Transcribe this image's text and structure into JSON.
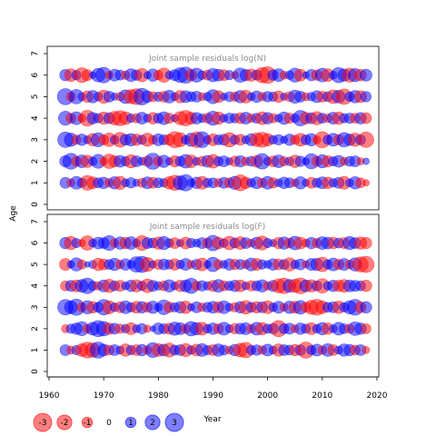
{
  "chart_data": {
    "type": "scatter",
    "xlabel": "Year",
    "ylabel": "Age",
    "xlim": [
      1960,
      2020
    ],
    "ylim": [
      0,
      7
    ],
    "x_ticks": [
      1960,
      1970,
      1980,
      1990,
      2000,
      2010,
      2020
    ],
    "y_ticks": [
      0,
      1,
      2,
      3,
      4,
      5,
      6,
      7
    ],
    "years": [
      1963,
      2018
    ],
    "ages": [
      1,
      2,
      3,
      4,
      5,
      6
    ],
    "colors": {
      "negative": "#ff0000",
      "positive": "#0000ff",
      "alpha": 0.5
    },
    "panels": [
      {
        "title": "Joint sample residuals log(N)",
        "residuals": {
          "6": [
            1.2,
            -1.5,
            0.8,
            -2,
            -1.1,
            0.4,
            1.7,
            2.2,
            -0.6,
            1.3,
            0.9,
            -0.7,
            1.5,
            1,
            -1.6,
            0.5,
            1.4,
            -0.8,
            -1.9,
            0.6,
            1.1,
            2,
            2.4,
            -1.2,
            1.8,
            0.7,
            -0.9,
            1.6,
            1.3,
            -1.1,
            0.8,
            -0.5,
            1.9,
            1.2,
            -1.4,
            0.9,
            -2.1,
            -2.6,
            1,
            1.5,
            -0.6,
            0.7,
            1.8,
            -1.3,
            0.4,
            1.2,
            -1,
            1.7,
            -1.5,
            0.6,
            2.1,
            1.4,
            -1.8,
            1.6,
            -1.2,
            1.3
          ],
          "5": [
            2.4,
            -0.8,
            1.9,
            0.6,
            -1.2,
            1.4,
            0.7,
            -1.6,
            1.1,
            0.5,
            -0.7,
            1.7,
            -1.8,
            -2.3,
            2.5,
            1.2,
            -0.9,
            0.8,
            -1.1,
            1.5,
            0.6,
            -1.4,
            1.3,
            0.9,
            1.1,
            -0.6,
            0.7,
            1.8,
            -1.3,
            0.5,
            0.9,
            -0.8,
            1.4,
            -1.5,
            0.6,
            1.2,
            -0.7,
            1,
            0.8,
            -1.2,
            0.5,
            -0.9,
            1.6,
            1.1,
            -0.6,
            0.7,
            1.3,
            -1.1,
            0.9,
            -1.7,
            1.5,
            -2.2,
            0.8,
            1.4,
            -1.3,
            1
          ],
          "4": [
            1.8,
            -0.9,
            1.5,
            -0.6,
            -2.3,
            1.2,
            0.8,
            -1.4,
            1.1,
            -1.7,
            -2.1,
            -1.5,
            0.7,
            -0.8,
            1.3,
            0.6,
            -1.2,
            0.9,
            1.5,
            -1,
            0.5,
            -1.6,
            -2.2,
            -1.3,
            1.2,
            0.7,
            -0.9,
            1.8,
            -1.4,
            0.6,
            1,
            0.8,
            -1.1,
            1.3,
            -0.7,
            0.9,
            -1.5,
            1.2,
            -0.8,
            0.6,
            1.4,
            -1,
            0.7,
            2.2,
            -1.3,
            1.1,
            -1.6,
            0.9,
            -0.7,
            1.3,
            -1.4,
            0.8,
            1,
            -0.9,
            1.2,
            -1.1
          ],
          "3": [
            2.2,
            1.6,
            -0.8,
            1.2,
            0.6,
            -1.4,
            1.8,
            -0.9,
            -1.7,
            0.7,
            -2,
            1.1,
            1.4,
            -1.2,
            0.8,
            -1.6,
            -0.7,
            1.3,
            0.9,
            -1.1,
            -2.4,
            -1.8,
            0.7,
            1.6,
            -2.2,
            2.3,
            0.6,
            -1.3,
            0.9,
            1.1,
            -1.9,
            0.8,
            -1.1,
            0.6,
            1.3,
            -1.7,
            -2.1,
            -1.4,
            0.7,
            1,
            0.5,
            1.2,
            -0.8,
            -1.5,
            0.9,
            1.4,
            -0.6,
            -2.4,
            0.8,
            1.5,
            -1,
            1.9,
            1.2,
            -1.6,
            0.9,
            -2.2
          ],
          "2": [
            1.2,
            2.3,
            -0.9,
            1.5,
            -1.4,
            0.7,
            1.8,
            -0.6,
            -1.9,
            -1.2,
            1.3,
            0.8,
            -1.6,
            1.1,
            0.6,
            -1,
            2.4,
            -0.8,
            1.4,
            0.5,
            -1.2,
            0.9,
            1.7,
            -1.5,
            0.6,
            -0.9,
            1.3,
            -1.7,
            0.8,
            1.1,
            0.5,
            -1,
            1.2,
            -0.7,
            0.9,
            -1.3,
            2.2,
            0.6,
            -1.1,
            1.5,
            -0.8,
            0.7,
            -1.4,
            1,
            0.5,
            2.1,
            -0.9,
            1.6,
            -1.2,
            0.8,
            1.3,
            -0.6,
            0.9,
            1.1,
            -0.5,
            0.4
          ],
          "1": [
            1.1,
            -0.6,
            1.5,
            0.8,
            -2,
            -1.3,
            0.9,
            1.2,
            -0.7,
            1.4,
            -1.6,
            0.6,
            1,
            0.5,
            -0.8,
            1.3,
            -1.1,
            0.9,
            0.7,
            -1.4,
            -2.1,
            1.8,
            2.4,
            0.6,
            1.2,
            -1.5,
            0.8,
            0.9,
            -0.7,
            1.1,
            -0.9,
            1.6,
            -2.3,
            -1.2,
            0.7,
            1.3,
            -0.8,
            1.5,
            -1,
            0.6,
            1.2,
            0.9,
            -0.6,
            1.4,
            0.5,
            -1.1,
            0.8,
            1.3,
            -1.2,
            0.7,
            1.1,
            -1.5,
            0.6,
            1.4,
            -0.9,
            -0.4
          ]
        }
      },
      {
        "title": "Joint sample residuals log(F)",
        "residuals": {
          "6": [
            1.2,
            -1.6,
            0.8,
            -0.5,
            -1.9,
            0.6,
            1.3,
            1.1,
            2,
            -0.7,
            1.4,
            -1.2,
            1.5,
            0.6,
            -2,
            1.1,
            0.9,
            -1.4,
            1.6,
            0.7,
            -1.1,
            0.5,
            -1.3,
            0.8,
            0.6,
            1.1,
            -0.9,
            2.2,
            -1.3,
            0.7,
            -1.7,
            0.9,
            -1.5,
            1.1,
            -0.6,
            1.3,
            -1.8,
            0.8,
            0.5,
            -1.2,
            1.4,
            -0.9,
            1.7,
            -1.3,
            -0.6,
            1.2,
            -0.8,
            1.5,
            1.3,
            -1.2,
            0.9,
            -1.1,
            1.6,
            1.1,
            -1.4,
            -1.2
          ],
          "5": [
            -1.3,
            0.5,
            1.6,
            -0.8,
            0.3,
            0.6,
            -1.4,
            -1.1,
            0.9,
            1.4,
            -0.7,
            1.2,
            0.6,
            2.2,
            2.4,
            -1.8,
            0.5,
            -0.9,
            1.1,
            0.8,
            -1.2,
            0.7,
            1.3,
            -0.6,
            1,
            -1.5,
            0.5,
            1.9,
            -0.8,
            0.6,
            1.2,
            -1,
            0.9,
            -0.7,
            1.5,
            -1.3,
            0.8,
            0.6,
            1.2,
            -1.1,
            0.9,
            -1.6,
            0.7,
            1.1,
            -0.5,
            1.3,
            1.4,
            -1.9,
            0.8,
            1.5,
            -1,
            1.3,
            -0.7,
            1.6,
            -2.1,
            -2.4
          ],
          "4": [
            -0.9,
            1.1,
            -1.3,
            1.5,
            2.2,
            0.8,
            -0.7,
            1.3,
            -1.6,
            0.9,
            -1.1,
            0.6,
            1.2,
            -1.4,
            0.8,
            -1.7,
            1.1,
            0.7,
            -0.9,
            1.4,
            0.6,
            -1.2,
            1.3,
            2.1,
            -0.8,
            1,
            0.7,
            -1.1,
            1.5,
            -0.9,
            0.8,
            1.2,
            -1.3,
            0.6,
            -1,
            0.9,
            1.4,
            -0.7,
            1.1,
            -1.8,
            -2.2,
            1.5,
            -1.6,
            -2.3,
            1.3,
            -1.4,
            0.9,
            -1.9,
            0.7,
            1.2,
            -1.2,
            -1.5,
            1.3,
            1.1,
            0.9,
            -1.2
          ],
          "3": [
            2.2,
            1.5,
            2.4,
            -0.8,
            1.6,
            -1.2,
            0.9,
            2.2,
            -1.6,
            0.7,
            -1.1,
            1.5,
            0.8,
            -1.3,
            1.2,
            -0.9,
            1.4,
            0.6,
            2,
            -1,
            0.8,
            1.2,
            -1.4,
            0.5,
            1.1,
            -0.7,
            0.9,
            1.3,
            -1.1,
            1.5,
            0.6,
            -0.8,
            1.2,
            -1.7,
            0.9,
            -1.2,
            1.1,
            -1.5,
            0.7,
            1.3,
            -0.6,
            1.4,
            -1.3,
            1.7,
            -0.9,
            -1.8,
            -2.3,
            -1.5,
            0.9,
            1.1,
            -1.4,
            0.8,
            1.6,
            2.3,
            -1.1,
            1.2
          ],
          "2": [
            -0.6,
            0.8,
            1.2,
            1.8,
            -0.7,
            1.5,
            2.4,
            1.9,
            -1.2,
            1.1,
            -0.8,
            0.7,
            -1.3,
            0.6,
            1,
            -0.5,
            0.3,
            1.2,
            0.9,
            -1.1,
            1.6,
            1.3,
            -0.8,
            1.9,
            1.4,
            -1.5,
            0.7,
            1.2,
            -0.9,
            1.5,
            0.6,
            -1,
            1.1,
            1.3,
            -0.7,
            1.5,
            -1.4,
            0.8,
            1,
            -2.4,
            0.9,
            1.1,
            -0.6,
            1.2,
            0.8,
            -1.3,
            0.7,
            1.4,
            -1.2,
            0.6,
            1.5,
            0.9,
            -0.8,
            1.7,
            1.2,
            -0.9
          ],
          "1": [
            1.1,
            -0.6,
            0.8,
            -1.5,
            -2.3,
            -1.9,
            2.4,
            1.3,
            -0.9,
            1.1,
            0.6,
            -1.4,
            0.8,
            -1.1,
            1.2,
            -0.7,
            2,
            -1.5,
            1.3,
            -1.8,
            0.9,
            1.1,
            -1.6,
            0.7,
            -1.3,
            1.5,
            0.8,
            -1.1,
            1.4,
            0.9,
            -0.6,
            1.2,
            -1.7,
            -2.2,
            0.8,
            1,
            -0.7,
            1.3,
            0.6,
            -1.4,
            1.1,
            0.9,
            -1.2,
            1,
            -2.4,
            0.8,
            1.3,
            -0.7,
            1.5,
            -1.1,
            0.6,
            1.4,
            1.2,
            -0.9,
            1.1,
            -0.5
          ]
        }
      }
    ],
    "legend": {
      "placement": "bottom-left",
      "entries": [
        {
          "label": "-3",
          "value": -3
        },
        {
          "label": "-2",
          "value": -2
        },
        {
          "label": "-1",
          "value": -1
        },
        {
          "label": "0",
          "value": 0
        },
        {
          "label": "1",
          "value": 1
        },
        {
          "label": "2",
          "value": 2
        },
        {
          "label": "3",
          "value": 3
        }
      ]
    }
  }
}
